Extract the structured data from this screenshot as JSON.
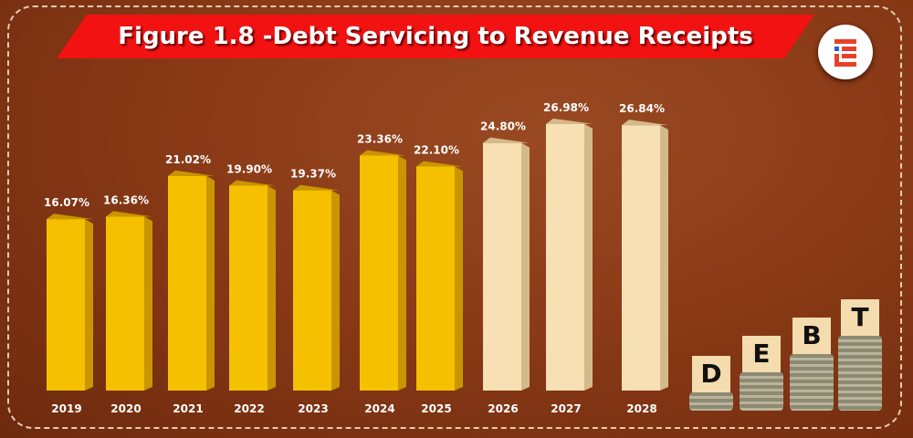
{
  "chart_data": {
    "type": "bar",
    "title": "Figure 1.8 -Debt Servicing to Revenue Receipts",
    "categories": [
      "2019",
      "2020",
      "2021",
      "2022",
      "2023",
      "2024",
      "2025",
      "2026",
      "2027",
      "2028"
    ],
    "values": [
      16.07,
      16.36,
      21.02,
      19.9,
      19.37,
      23.36,
      22.1,
      24.8,
      26.98,
      26.84
    ],
    "data_labels": [
      "16.07%",
      "16.36%",
      "21.02%",
      "19.90%",
      "19.37%",
      "23.36%",
      "22.10%",
      "24.80%",
      "26.98%",
      "26.84%"
    ],
    "projected": [
      false,
      false,
      false,
      false,
      false,
      false,
      false,
      true,
      true,
      true
    ],
    "unit": "%",
    "xlabel": "",
    "ylabel": "",
    "ylim": [
      -4,
      30
    ],
    "grid": false,
    "colors": {
      "actual": "#F5C000",
      "actual_side": "#C99500",
      "projected": "#F7E0B4",
      "projected_side": "#D4B98A",
      "banner": "#F21212",
      "background": "#8A3A16"
    }
  },
  "decor": {
    "tiles": [
      "D",
      "E",
      "B",
      "T"
    ],
    "logo": "logo-icon"
  }
}
